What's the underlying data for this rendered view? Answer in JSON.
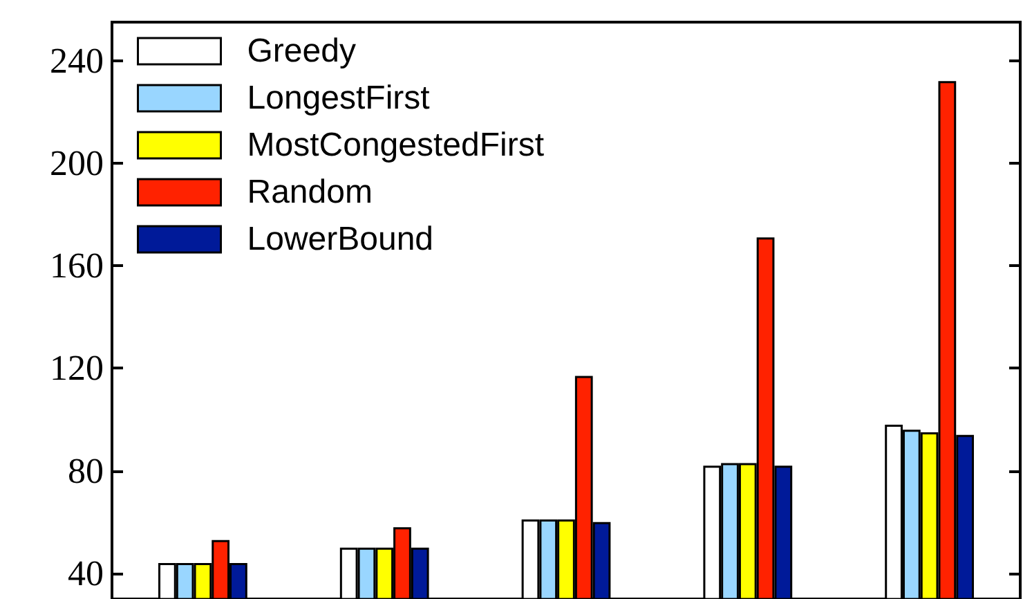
{
  "chart_data": {
    "type": "bar",
    "categories": [
      null,
      null,
      null,
      null,
      null
    ],
    "series": [
      {
        "name": "Greedy",
        "color": "#ffffff",
        "values": [
          44,
          50,
          61,
          82,
          98
        ]
      },
      {
        "name": "LongestFirst",
        "color": "#99d6ff",
        "values": [
          44,
          50,
          61,
          83,
          96
        ]
      },
      {
        "name": "MostCongestedFirst",
        "color": "#ffff00",
        "values": [
          44,
          50,
          61,
          83,
          95
        ]
      },
      {
        "name": "Random",
        "color": "#ff2200",
        "values": [
          53,
          58,
          117,
          171,
          232
        ]
      },
      {
        "name": "LowerBound",
        "color": "#001a99",
        "values": [
          44,
          50,
          60,
          82,
          94
        ]
      }
    ],
    "ylim": [
      30,
      255
    ],
    "yticks": [
      40,
      80,
      120,
      160,
      200,
      240
    ],
    "tick_labels": "y",
    "legend": "top left",
    "grid": false
  }
}
